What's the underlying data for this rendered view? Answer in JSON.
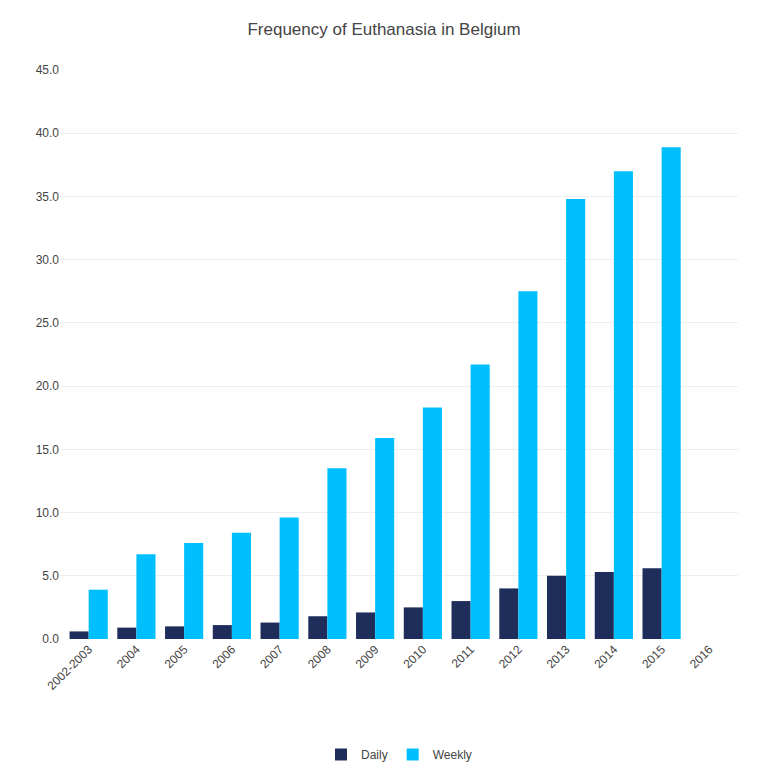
{
  "chart_data": {
    "type": "bar",
    "title": "Frequency of Euthanasia in Belgium",
    "categories": [
      "2002-2003",
      "2004",
      "2005",
      "2006",
      "2007",
      "2008",
      "2009",
      "2010",
      "2011",
      "2012",
      "2013",
      "2014",
      "2015",
      "2016"
    ],
    "series": [
      {
        "name": "Daily",
        "color": "#1f2d5a",
        "values": [
          0.6,
          0.9,
          1.0,
          1.1,
          1.3,
          1.8,
          2.1,
          2.5,
          3.0,
          4.0,
          5.0,
          5.3,
          5.6,
          null
        ]
      },
      {
        "name": "Weekly",
        "color": "#00bfff",
        "values": [
          3.9,
          6.7,
          7.6,
          8.4,
          9.6,
          13.5,
          15.9,
          18.3,
          21.7,
          27.5,
          34.8,
          37.0,
          38.9,
          null
        ]
      }
    ],
    "ylim": [
      0,
      45
    ],
    "yticks": [
      {
        "value": 0,
        "label": "0.0"
      },
      {
        "value": 5,
        "label": "5.0"
      },
      {
        "value": 10,
        "label": "10.0"
      },
      {
        "value": 15,
        "label": "15.0"
      },
      {
        "value": 20,
        "label": "20.0"
      },
      {
        "value": 25,
        "label": "25.0"
      },
      {
        "value": 30,
        "label": "30.0"
      },
      {
        "value": 35,
        "label": "35.0"
      },
      {
        "value": 40,
        "label": "40.0"
      },
      {
        "value": 45,
        "label": "45.0"
      }
    ],
    "grid": true,
    "legend": "bottom"
  }
}
